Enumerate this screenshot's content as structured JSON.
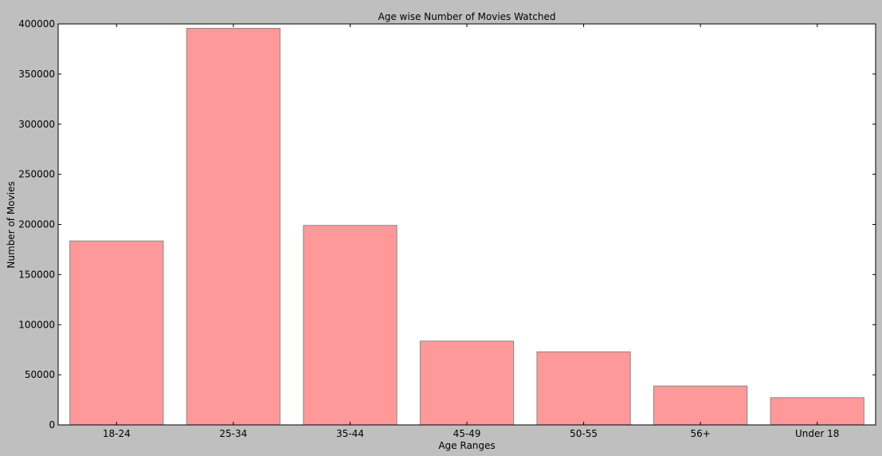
{
  "chart_data": {
    "type": "bar",
    "title": "Age wise Number of Movies Watched",
    "xlabel": "Age Ranges",
    "ylabel": "Number of Movies",
    "categories": [
      "18-24",
      "25-34",
      "35-44",
      "45-49",
      "50-55",
      "56+",
      "Under 18"
    ],
    "values": [
      183500,
      395600,
      199000,
      83600,
      72900,
      38800,
      27200
    ],
    "ylim": [
      0,
      400000
    ],
    "yticks": [
      0,
      50000,
      100000,
      150000,
      200000,
      250000,
      300000,
      350000,
      400000
    ],
    "grid": false,
    "colors": {
      "bar_fill": "#ff9999",
      "bar_edge": "#888888",
      "figure_background": "#bfbfbf",
      "plot_background": "#ffffff"
    }
  }
}
